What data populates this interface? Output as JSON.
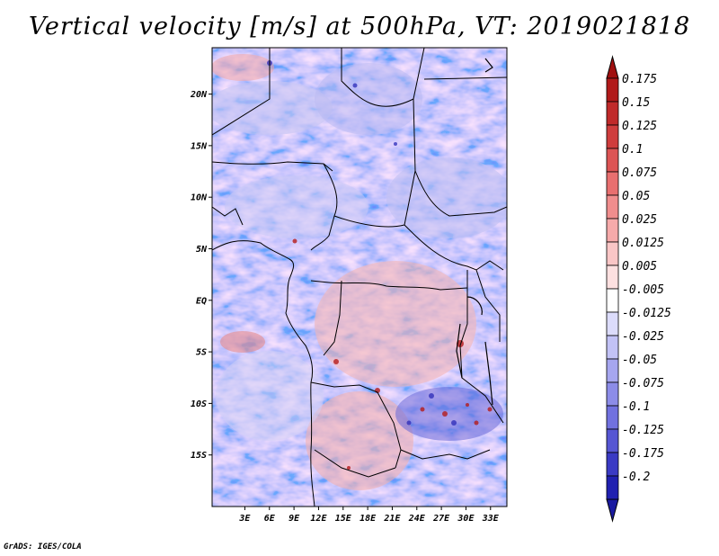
{
  "title": "Vertical velocity [m/s] at 500hPa, VT: 2019021818",
  "credit": "GrADS: IGES/COLA",
  "map": {
    "projection": "latlon",
    "lon_range_deg": [
      -1,
      35
    ],
    "lat_range_deg": [
      -20,
      24.5
    ],
    "lon_ticks": [
      {
        "value": 3,
        "label": "3E"
      },
      {
        "value": 6,
        "label": "6E"
      },
      {
        "value": 9,
        "label": "9E"
      },
      {
        "value": 12,
        "label": "12E"
      },
      {
        "value": 15,
        "label": "15E"
      },
      {
        "value": 18,
        "label": "18E"
      },
      {
        "value": 21,
        "label": "21E"
      },
      {
        "value": 24,
        "label": "24E"
      },
      {
        "value": 27,
        "label": "27E"
      },
      {
        "value": 30,
        "label": "30E"
      },
      {
        "value": 33,
        "label": "33E"
      }
    ],
    "lat_ticks": [
      {
        "value": 20,
        "label": "20N"
      },
      {
        "value": 15,
        "label": "15N"
      },
      {
        "value": 10,
        "label": "10N"
      },
      {
        "value": 5,
        "label": "5N"
      },
      {
        "value": 0,
        "label": "EQ"
      },
      {
        "value": -5,
        "label": "5S"
      },
      {
        "value": -10,
        "label": "10S"
      },
      {
        "value": -15,
        "label": "15S"
      }
    ]
  },
  "colorbar": {
    "levels": [
      {
        "label": "0.175",
        "color": "#b11a1a"
      },
      {
        "label": "0.15",
        "color": "#c02a2a"
      },
      {
        "label": "0.125",
        "color": "#cf3d3d"
      },
      {
        "label": "0.1",
        "color": "#dc5454"
      },
      {
        "label": "0.075",
        "color": "#e86f6f"
      },
      {
        "label": "0.05",
        "color": "#f08d8d"
      },
      {
        "label": "0.025",
        "color": "#f6aaaa"
      },
      {
        "label": "0.0125",
        "color": "#fac6c6"
      },
      {
        "label": "0.005",
        "color": "#fde0e0"
      },
      {
        "label": "-0.005",
        "color": "#ffffff"
      },
      {
        "label": "-0.0125",
        "color": "#dcdcfb"
      },
      {
        "label": "-0.025",
        "color": "#c2c2f6"
      },
      {
        "label": "-0.05",
        "color": "#a6a6ef"
      },
      {
        "label": "-0.075",
        "color": "#8c8ce8"
      },
      {
        "label": "-0.1",
        "color": "#7171df"
      },
      {
        "label": "-0.125",
        "color": "#5656d3"
      },
      {
        "label": "-0.175",
        "color": "#3a3ac4"
      },
      {
        "label": "-0.2",
        "color": "#2020b0"
      }
    ],
    "top_triangle_color": "#a01010",
    "bottom_triangle_color": "#1a1aa0"
  }
}
